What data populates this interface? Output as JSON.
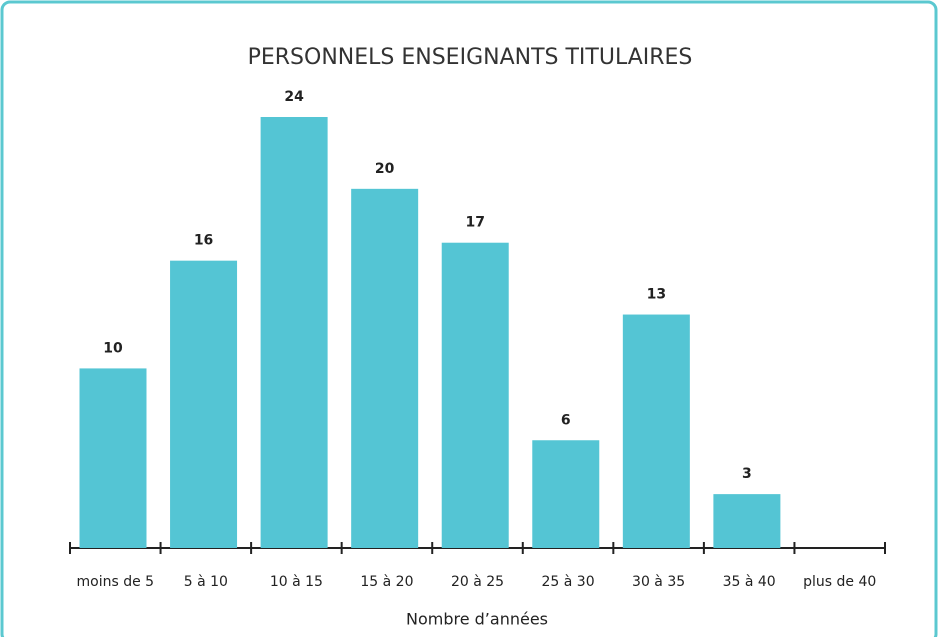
{
  "chart_data": {
    "type": "bar",
    "title": "PERSONNELS ENSEIGNANTS TITULAIRES",
    "x_label": "Nombre d’années",
    "categories": [
      "moins de 5",
      "5 à 10",
      "10 à 15",
      "15 à 20",
      "20 à 25",
      "25 à 30",
      "30 à 35",
      "35 à 40",
      "plus de 40"
    ],
    "values": [
      10,
      16,
      24,
      20,
      17,
      6,
      13,
      3,
      null
    ],
    "color": "#54c5d4"
  }
}
